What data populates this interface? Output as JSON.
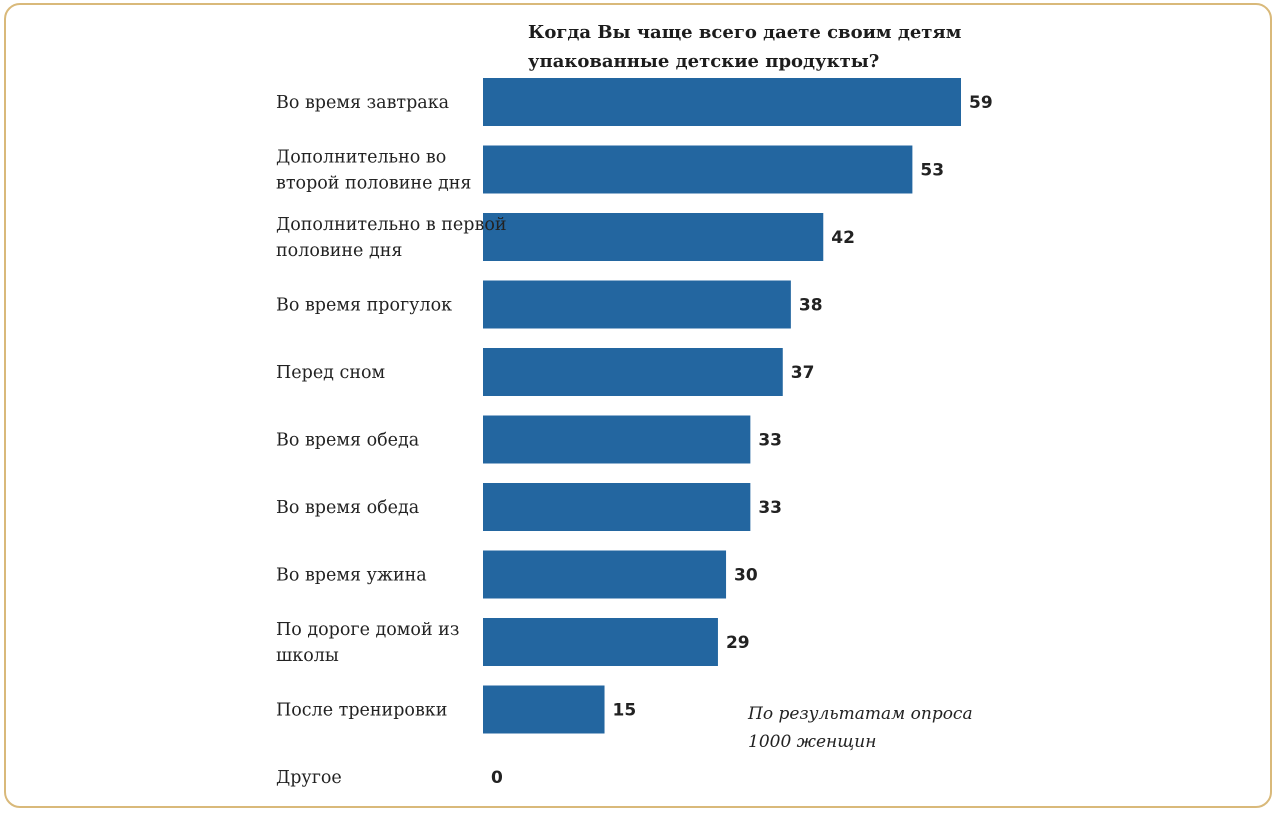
{
  "colors": {
    "bar": "#2366a0",
    "frame": "#d9b97a",
    "text": "#222222"
  },
  "chart_data": {
    "type": "bar",
    "orientation": "horizontal",
    "title": "Когда Вы чаще всего даете своим детям упакованные детские продукты?",
    "categories": [
      "Во время завтрака",
      "Дополнительно во второй половине дня",
      "Дополнительно в первой половине дня",
      "Во время прогулок",
      "Перед сном",
      "Во время обеда",
      "Во время обеда",
      "Во время ужина",
      "По дороге домой из школы",
      "После тренировки",
      "Другое"
    ],
    "values": [
      59,
      53,
      42,
      38,
      37,
      33,
      33,
      30,
      29,
      15,
      0
    ],
    "xlim": [
      0,
      59
    ],
    "grid": false,
    "legend": "none"
  },
  "note": "По результатам опроса 1000 женщин"
}
